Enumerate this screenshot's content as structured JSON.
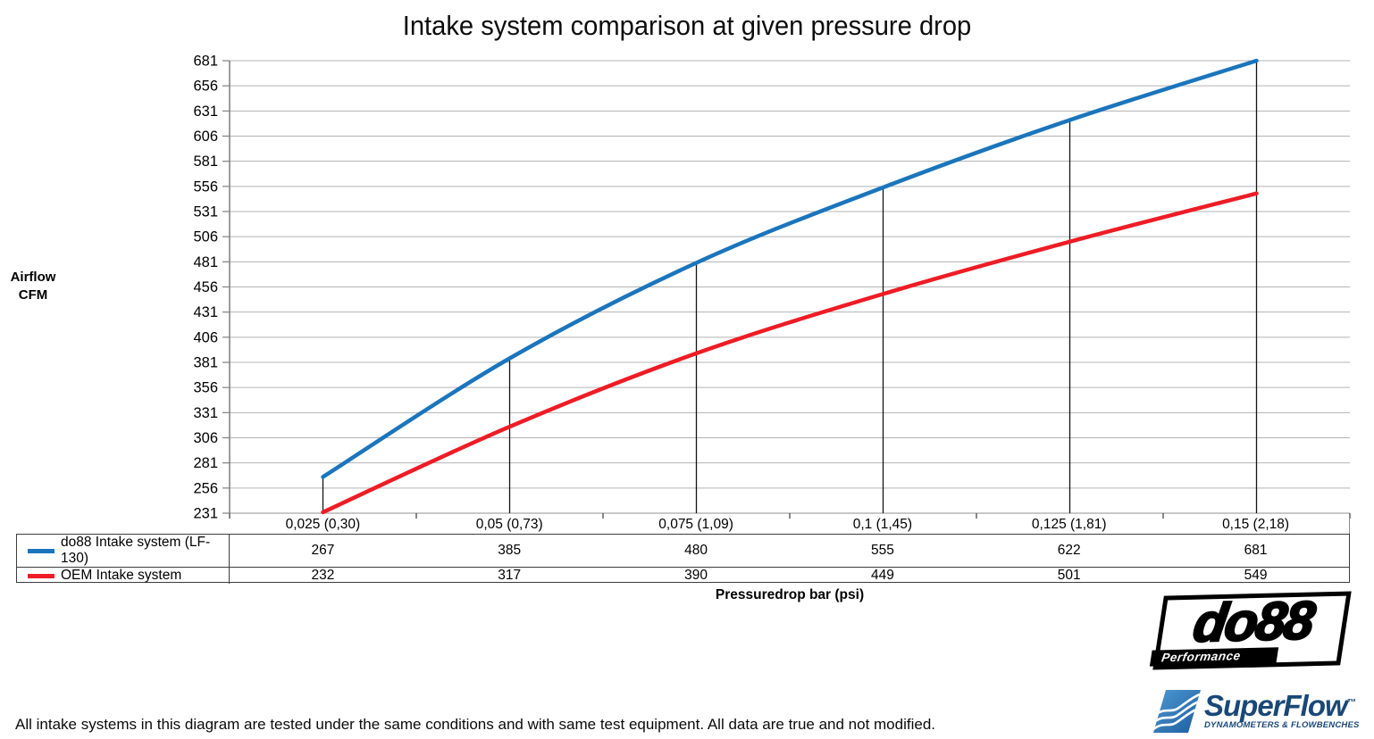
{
  "title": "Intake system comparison at given pressure drop",
  "y_axis_title": {
    "line1": "Airflow",
    "line2": "CFM"
  },
  "x_axis_title": "Pressuredrop bar (psi)",
  "footer_note": "All intake systems in this diagram are tested under the same conditions and with same test equipment. All data are true and not modified.",
  "logos": {
    "do88": {
      "name": "do88",
      "tagline": "Performance"
    },
    "superflow": {
      "name": "SuperFlow",
      "trademark": "™",
      "tagline": "DYNAMOMETERS & FLOWBENCHES"
    }
  },
  "chart_data": {
    "type": "line",
    "title": "Intake system comparison at given pressure drop",
    "xlabel": "Pressuredrop bar (psi)",
    "ylabel": "Airflow CFM",
    "categories": [
      "0,025 (0,30)",
      "0,05 (0,73)",
      "0,075 (1,09)",
      "0,1 (1,45)",
      "0,125 (1,81)",
      "0,15 (2,18)"
    ],
    "series": [
      {
        "name": "do88 Intake system (LF-130)",
        "color": "#1b75bc",
        "values": [
          267,
          385,
          480,
          555,
          622,
          681
        ]
      },
      {
        "name": "OEM Intake system",
        "color": "#ee1c25",
        "values": [
          232,
          317,
          390,
          449,
          501,
          549
        ]
      }
    ],
    "ylim": [
      231,
      681
    ],
    "ytick_step": 25,
    "yticks": [
      231,
      256,
      281,
      306,
      331,
      356,
      381,
      406,
      431,
      456,
      481,
      506,
      531,
      556,
      581,
      606,
      631,
      656,
      681
    ],
    "grid": true,
    "drop_lines": true,
    "legend_position": "table-left",
    "colors": {
      "gridline": "#b3b3b3",
      "x_axis": "#a6a6a6",
      "y_axis": "#7f7f7f",
      "drop_line": "#141414"
    }
  }
}
